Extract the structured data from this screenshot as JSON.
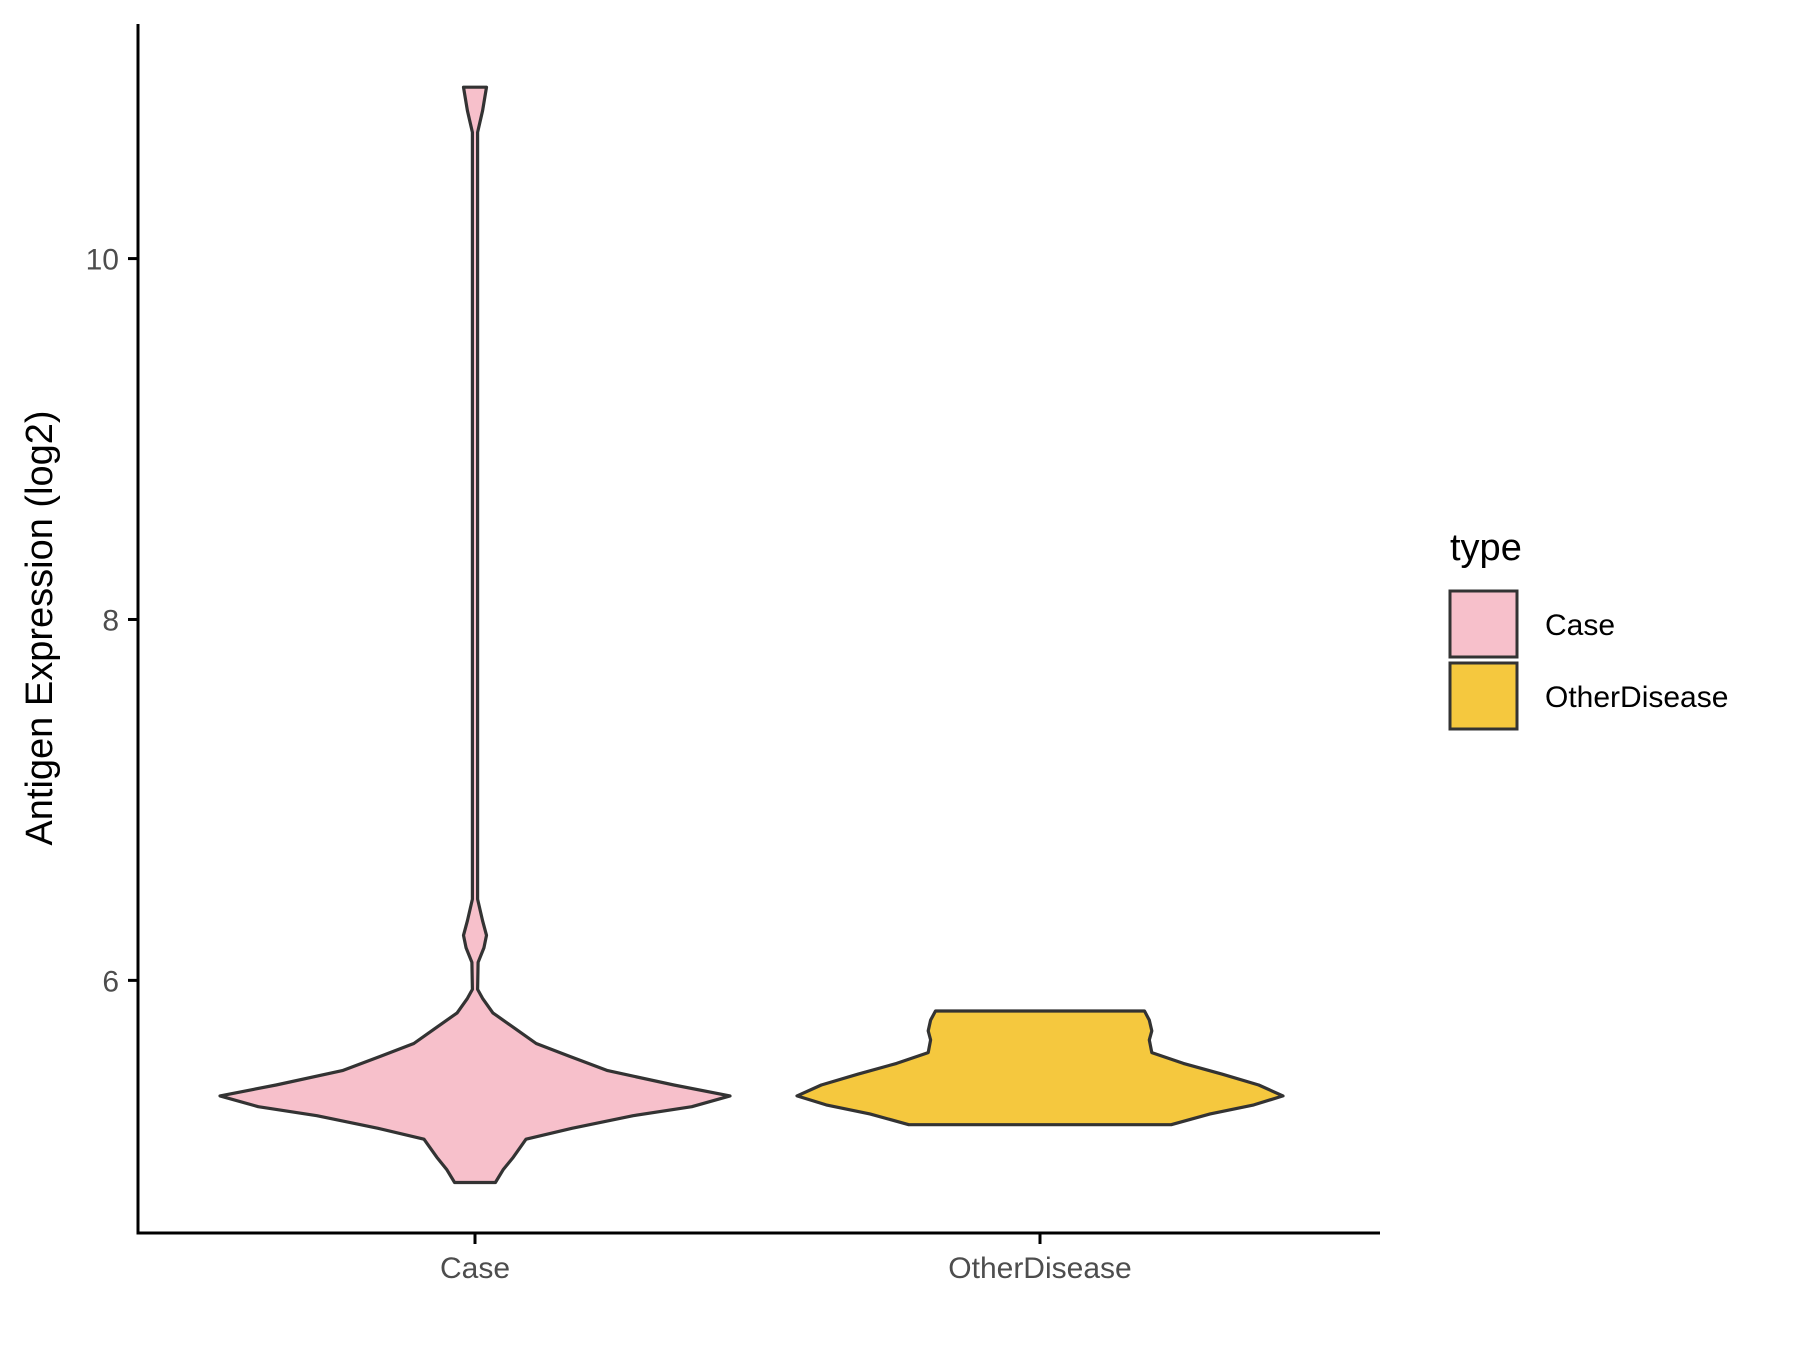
{
  "chart_data": {
    "type": "violin",
    "xlabel": "",
    "ylabel": "Antigen Expression (log2)",
    "categories": [
      "Case",
      "OtherDisease"
    ],
    "ylim": [
      4.6,
      11.3
    ],
    "yticks": [
      6,
      8,
      10
    ],
    "grid": false,
    "legend": {
      "title": "type",
      "position": "right",
      "entries": [
        {
          "label": "Case",
          "color": "#F7C0CB"
        },
        {
          "label": "OtherDisease",
          "color": "#F5C83E"
        }
      ]
    },
    "series": [
      {
        "category": "Case",
        "color": "#F7C0CB",
        "ymin": 4.88,
        "ymax": 10.95,
        "density_profile": [
          [
            4.88,
            0.08
          ],
          [
            4.95,
            0.11
          ],
          [
            5.02,
            0.15
          ],
          [
            5.12,
            0.2
          ],
          [
            5.18,
            0.38
          ],
          [
            5.25,
            0.62
          ],
          [
            5.3,
            0.85
          ],
          [
            5.36,
            1.0
          ],
          [
            5.42,
            0.78
          ],
          [
            5.5,
            0.52
          ],
          [
            5.58,
            0.37
          ],
          [
            5.65,
            0.24
          ],
          [
            5.73,
            0.16
          ],
          [
            5.82,
            0.07
          ],
          [
            5.9,
            0.03
          ],
          [
            5.95,
            0.01
          ],
          [
            6.1,
            0.012
          ],
          [
            6.18,
            0.035
          ],
          [
            6.25,
            0.045
          ],
          [
            6.33,
            0.03
          ],
          [
            6.45,
            0.01
          ],
          [
            6.8,
            0.01
          ],
          [
            10.7,
            0.01
          ],
          [
            10.82,
            0.03
          ],
          [
            10.95,
            0.045
          ]
        ]
      },
      {
        "category": "OtherDisease",
        "color": "#F5C83E",
        "ymin": 5.2,
        "ymax": 5.83,
        "density_profile": [
          [
            5.2,
            0.54
          ],
          [
            5.26,
            0.7
          ],
          [
            5.31,
            0.88
          ],
          [
            5.36,
            1.0
          ],
          [
            5.42,
            0.9
          ],
          [
            5.48,
            0.75
          ],
          [
            5.54,
            0.59
          ],
          [
            5.6,
            0.46
          ],
          [
            5.67,
            0.45
          ],
          [
            5.72,
            0.46
          ],
          [
            5.78,
            0.45
          ],
          [
            5.83,
            0.43
          ]
        ]
      }
    ]
  }
}
